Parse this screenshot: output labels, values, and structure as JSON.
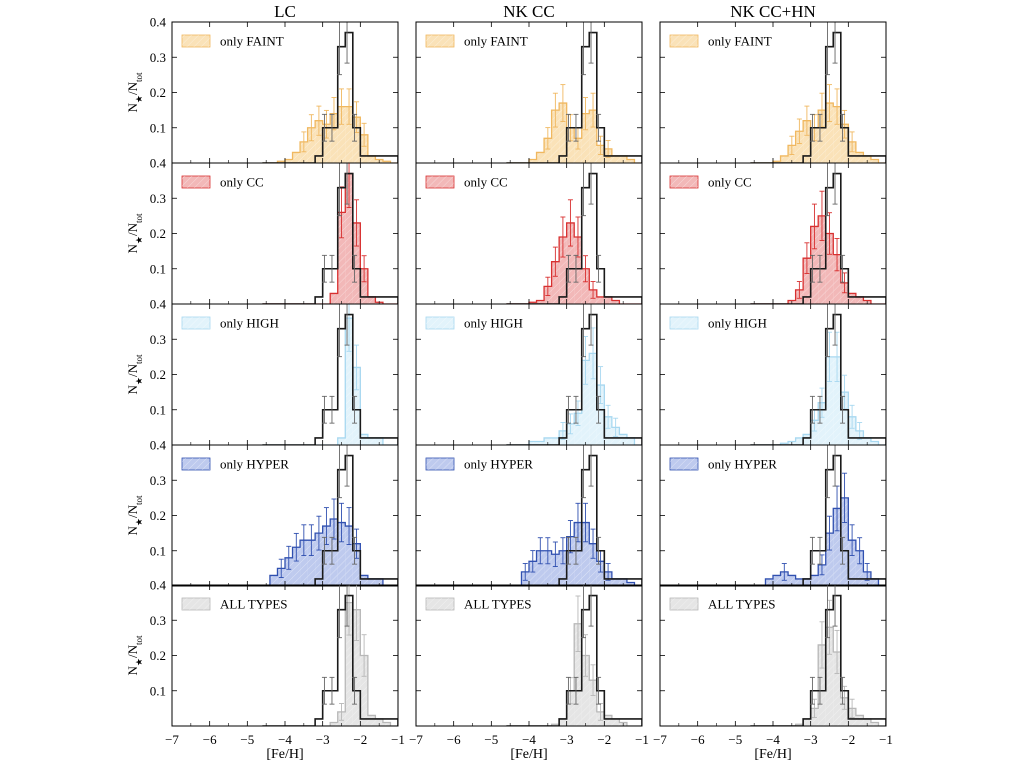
{
  "chart_data": {
    "type": "histogram-grid",
    "columns": [
      "LC",
      "NK CC",
      "NK CC+HN"
    ],
    "rows": [
      "only FAINT",
      "only CC",
      "only HIGH",
      "only HYPER",
      "ALL TYPES"
    ],
    "xlabel": "[Fe/H]",
    "ylabel": "N",
    "ylabel_star": "★",
    "ylabel_sep": "/N",
    "ylabel_sub": "tot",
    "xlim": [
      -7,
      -1
    ],
    "ylim": [
      0,
      0.4
    ],
    "x_ticks": [
      -7,
      -6,
      -5,
      -4,
      -3,
      -2,
      -1
    ],
    "x_tick_labels": [
      "−7",
      "−6",
      "−5",
      "−4",
      "−3",
      "−2",
      "−1"
    ],
    "y_ticks": [
      0.1,
      0.2,
      0.3,
      0.4
    ],
    "y_tick_labels": [
      "0.1",
      "0.2",
      "0.3",
      "0.4"
    ],
    "bin_edges": [
      -4.6,
      -4.4,
      -4.2,
      -4.0,
      -3.8,
      -3.6,
      -3.4,
      -3.2,
      -3.0,
      -2.8,
      -2.6,
      -2.4,
      -2.2,
      -2.0,
      -1.8,
      -1.6,
      -1.4,
      -1.2,
      -1.0
    ],
    "observed": {
      "name": "observed",
      "color": "#1a1a1a",
      "values": [
        0,
        0,
        0,
        0,
        0,
        0,
        0,
        0.02,
        0.1,
        0.1,
        0.33,
        0.37,
        0.1,
        0.02,
        0.02,
        0.02,
        0.02,
        0.02
      ]
    },
    "row_colors": [
      {
        "fill": "#f8d8a0",
        "edge": "#f0b860"
      },
      {
        "fill": "#eea0a0",
        "edge": "#d83030"
      },
      {
        "fill": "#d8effa",
        "edge": "#a8d8f0"
      },
      {
        "fill": "#a8b8e8",
        "edge": "#3050b0"
      },
      {
        "fill": "#dcdcdc",
        "edge": "#b8b8b8"
      }
    ],
    "series": [
      [
        {
          "name": "LC only FAINT",
          "values": [
            0,
            0,
            0.005,
            0.01,
            0.03,
            0.06,
            0.1,
            0.12,
            0.11,
            0.14,
            0.16,
            0.16,
            0.13,
            0.08,
            0.02,
            0.01,
            0.005,
            0
          ]
        },
        {
          "name": "NK CC only FAINT",
          "values": [
            0,
            0,
            0,
            0.01,
            0.03,
            0.07,
            0.15,
            0.17,
            0.1,
            0.07,
            0.14,
            0.15,
            0.05,
            0.04,
            0.02,
            0.02,
            0.01,
            0
          ]
        },
        {
          "name": "NK CC+HN only FAINT",
          "values": [
            0,
            0,
            0,
            0.005,
            0.02,
            0.05,
            0.09,
            0.12,
            0.1,
            0.15,
            0.17,
            0.16,
            0.11,
            0.06,
            0.03,
            0.02,
            0.01,
            0
          ]
        }
      ],
      [
        {
          "name": "LC only CC",
          "values": [
            0,
            0,
            0,
            0,
            0,
            0,
            0,
            0,
            0,
            0.03,
            0.26,
            0.37,
            0.23,
            0.1,
            0.02,
            0.005,
            0,
            0
          ]
        },
        {
          "name": "NK CC only CC",
          "values": [
            0,
            0,
            0,
            0.005,
            0.01,
            0.05,
            0.12,
            0.19,
            0.23,
            0.19,
            0.1,
            0.04,
            0.02,
            0.02,
            0.01,
            0,
            0,
            0
          ]
        },
        {
          "name": "NK CC+HN only CC",
          "values": [
            0,
            0,
            0,
            0,
            0,
            0.01,
            0.04,
            0.13,
            0.22,
            0.25,
            0.2,
            0.14,
            0.06,
            0.03,
            0.02,
            0.01,
            0,
            0
          ]
        }
      ],
      [
        {
          "name": "LC only HIGH",
          "values": [
            0,
            0,
            0,
            0,
            0,
            0,
            0,
            0,
            0,
            0,
            0.02,
            0.36,
            0.22,
            0.03,
            0.02,
            0.02,
            0,
            0
          ]
        },
        {
          "name": "NK CC only HIGH",
          "values": [
            0,
            0,
            0,
            0.01,
            0.01,
            0.02,
            0.02,
            0.04,
            0.06,
            0.09,
            0.24,
            0.26,
            0.17,
            0.08,
            0.05,
            0.03,
            0.02,
            0
          ]
        },
        {
          "name": "NK CC+HN only HIGH",
          "values": [
            0,
            0,
            0,
            0,
            0.005,
            0.01,
            0.02,
            0.03,
            0.07,
            0.12,
            0.25,
            0.25,
            0.15,
            0.08,
            0.04,
            0.02,
            0.01,
            0
          ]
        }
      ],
      [
        {
          "name": "LC only HYPER",
          "values": [
            0,
            0.03,
            0.05,
            0.08,
            0.11,
            0.13,
            0.13,
            0.15,
            0.17,
            0.19,
            0.18,
            0.17,
            0.12,
            0.03,
            0.02,
            0.02,
            0,
            0
          ]
        },
        {
          "name": "NK CC only HYPER",
          "values": [
            0,
            0,
            0.04,
            0.07,
            0.1,
            0.1,
            0.09,
            0.1,
            0.14,
            0.18,
            0.18,
            0.12,
            0.07,
            0.04,
            0.02,
            0.02,
            0.01,
            0
          ]
        },
        {
          "name": "NK CC+HN only HYPER",
          "values": [
            0,
            0,
            0.02,
            0.03,
            0.04,
            0.03,
            0.02,
            0.02,
            0.03,
            0.06,
            0.15,
            0.22,
            0.25,
            0.13,
            0.1,
            0.04,
            0.02,
            0
          ]
        }
      ],
      [
        {
          "name": "LC ALL TYPES",
          "values": [
            0,
            0,
            0,
            0,
            0,
            0,
            0,
            0,
            0,
            0.01,
            0.04,
            0.35,
            0.33,
            0.2,
            0.03,
            0.02,
            0.01,
            0
          ]
        },
        {
          "name": "NK CC ALL TYPES",
          "values": [
            0,
            0,
            0,
            0,
            0,
            0,
            0.005,
            0.02,
            0.1,
            0.29,
            0.2,
            0.13,
            0.04,
            0.03,
            0.02,
            0.01,
            0,
            0
          ]
        },
        {
          "name": "NK CC+HN ALL TYPES",
          "values": [
            0,
            0,
            0,
            0,
            0,
            0,
            0.005,
            0.02,
            0.05,
            0.23,
            0.28,
            0.21,
            0.08,
            0.05,
            0.03,
            0.02,
            0.01,
            0
          ]
        }
      ]
    ]
  }
}
